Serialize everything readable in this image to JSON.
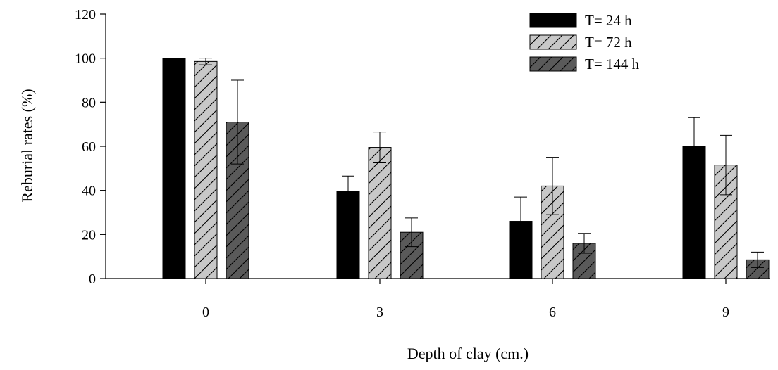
{
  "chart_data": {
    "type": "bar",
    "title": "",
    "xlabel": "Depth of clay (cm.)",
    "ylabel": "Reburial rates (%)",
    "ylim": [
      0,
      120
    ],
    "yticks": [
      0,
      20,
      40,
      60,
      80,
      100,
      120
    ],
    "categories": [
      "0",
      "3",
      "6",
      "9"
    ],
    "grid": false,
    "legend_position": "top-right",
    "series": [
      {
        "name": "T= 24 h",
        "values": [
          100,
          39.5,
          26,
          60
        ],
        "errors": [
          0,
          7,
          11,
          13
        ],
        "color": "#000000",
        "pattern": "solid"
      },
      {
        "name": "T= 72 h",
        "values": [
          98.5,
          59.5,
          42,
          51.5
        ],
        "errors": [
          1.5,
          7,
          13,
          13.5
        ],
        "color": "#c8c8c8",
        "pattern": "hatch"
      },
      {
        "name": "T= 144 h",
        "values": [
          71,
          21,
          16,
          8.5
        ],
        "errors": [
          19,
          6.5,
          4.5,
          3.5
        ],
        "color": "#5a5a5a",
        "pattern": "hatch"
      }
    ]
  }
}
